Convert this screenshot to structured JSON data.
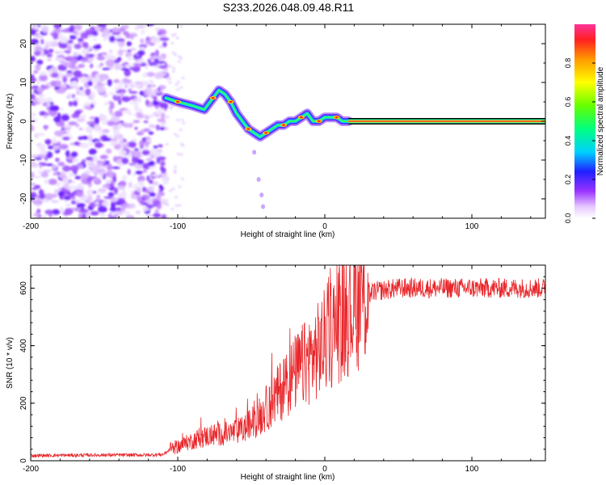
{
  "title": "S233.2026.048.09.48.R11",
  "chart_data": [
    {
      "type": "heatmap",
      "title": "S233.2026.048.09.48.R11",
      "xlabel": "Height of straight line (km)",
      "ylabel": "Frequency (Hz)",
      "xlim": [
        -200,
        150
      ],
      "ylim": [
        -25,
        25
      ],
      "xticks": [
        -200,
        -100,
        0,
        100
      ],
      "yticks": [
        -20,
        -10,
        0,
        10,
        20
      ],
      "colorbar": {
        "label": "Normalized spectral amplitude",
        "range": [
          0,
          1
        ],
        "ticks": [
          0.0,
          0.2,
          0.4,
          0.6,
          0.8
        ]
      },
      "noise_region_km": [
        -200,
        -108
      ],
      "tone_track": {
        "x": [
          -108,
          -100,
          -90,
          -82,
          -76,
          -72,
          -68,
          -64,
          -60,
          -56,
          -52,
          -48,
          -44,
          -40,
          -36,
          -32,
          -28,
          -24,
          -20,
          -16,
          -12,
          -8,
          -4,
          0,
          4,
          8,
          12,
          16
        ],
        "y": [
          6,
          5,
          4,
          3,
          6,
          8,
          7,
          5,
          2,
          0,
          -2,
          -3,
          -4,
          -3,
          -2,
          -1,
          -1,
          0,
          0,
          1,
          2,
          0,
          0,
          1,
          1,
          1,
          0,
          0
        ]
      },
      "carrier_start_km": 16,
      "carrier_freq_hz": 0
    },
    {
      "type": "line",
      "xlabel": "Height of straight line (km)",
      "ylabel": "SNR (10 * v/v)",
      "xlim": [
        -200,
        150
      ],
      "ylim": [
        0,
        680
      ],
      "xticks": [
        -200,
        -100,
        0,
        100
      ],
      "yticks": [
        0,
        200,
        400,
        600
      ],
      "series": [
        {
          "name": "SNR",
          "color": "#e8262a",
          "x": [
            -200,
            -150,
            -120,
            -110,
            -105,
            -95,
            -85,
            -75,
            -65,
            -55,
            -45,
            -35,
            -25,
            -15,
            -5,
            5,
            15,
            25,
            35,
            50,
            75,
            100,
            125,
            150
          ],
          "y": [
            18,
            20,
            20,
            22,
            40,
            60,
            80,
            90,
            95,
            110,
            150,
            210,
            280,
            330,
            380,
            450,
            520,
            570,
            590,
            600,
            600,
            600,
            600,
            600
          ]
        }
      ]
    }
  ]
}
